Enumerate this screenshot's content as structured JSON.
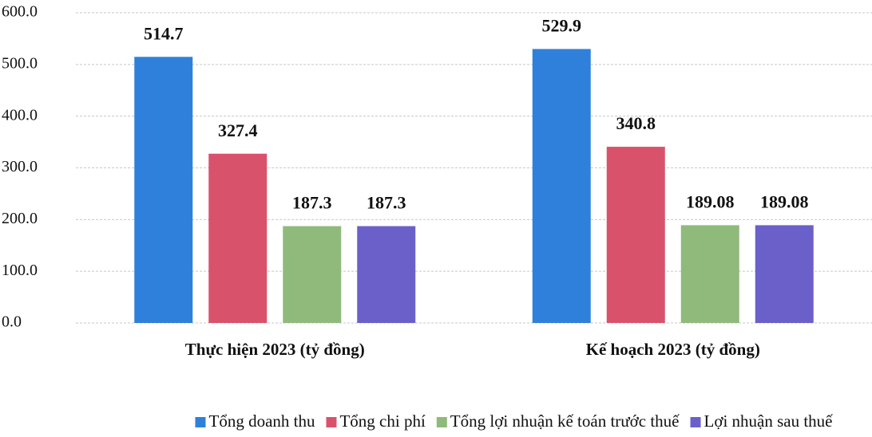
{
  "chart_data": {
    "type": "bar",
    "categories": [
      "Thực hiện 2023 (tỷ đồng)",
      "Kế hoạch 2023 (tỷ đồng)"
    ],
    "series": [
      {
        "name": "Tổng doanh thu",
        "color": "#2f80da",
        "values": [
          514.7,
          529.9
        ]
      },
      {
        "name": "Tổng chi phí",
        "color": "#d9526c",
        "values": [
          327.4,
          340.8
        ]
      },
      {
        "name": "Tổng lợi nhuận kế toán trước thuế",
        "color": "#8fba7c",
        "values": [
          187.3,
          189.08
        ]
      },
      {
        "name": "Lợi nhuận sau thuế",
        "color": "#6b60c9",
        "values": [
          187.3,
          189.08
        ]
      }
    ],
    "ylim": [
      0,
      600
    ],
    "yticks": [
      {
        "value": 0,
        "label": "0.0"
      },
      {
        "value": 100,
        "label": "100.0"
      },
      {
        "value": 200,
        "label": "200.0"
      },
      {
        "value": 300,
        "label": "300.0"
      },
      {
        "value": 400,
        "label": "400.0"
      },
      {
        "value": 500,
        "label": "500.0"
      },
      {
        "value": 600,
        "label": "600.0"
      }
    ],
    "grid": true,
    "legend": "bottom"
  }
}
